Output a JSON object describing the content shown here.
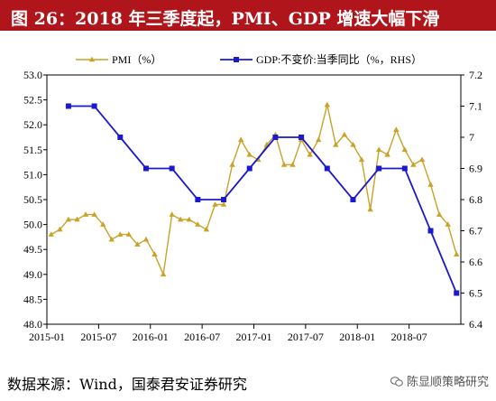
{
  "title": "图 26：2018 年三季度起，PMI、GDP 增速大幅下滑",
  "source": "数据来源：Wind，国泰君安证券研究",
  "watermark": "陈显顺策略研究",
  "colors": {
    "pmi": "#c9a227",
    "gdp": "#1a1acc",
    "title_bg": "#b0151b"
  },
  "chart_data": {
    "type": "line",
    "x_ticks": [
      "2015-01",
      "2015-07",
      "2016-01",
      "2016-07",
      "2017-01",
      "2017-07",
      "2018-01",
      "2018-07"
    ],
    "y_left": {
      "min": 48.0,
      "max": 53.0,
      "step": 0.5,
      "ticks": [
        "48.0",
        "48.5",
        "49.0",
        "49.5",
        "50.0",
        "50.5",
        "51.0",
        "51.5",
        "52.0",
        "52.5",
        "53.0"
      ]
    },
    "y_right": {
      "min": 6.4,
      "max": 7.2,
      "step": 0.1,
      "ticks": [
        "6.4",
        "6.5",
        "6.6",
        "6.7",
        "6.8",
        "6.9",
        "7",
        "7.1",
        "7.2"
      ]
    },
    "legend": {
      "placement": "top"
    },
    "series": [
      {
        "name": "PMI（%）",
        "axis": "left",
        "marker": "triangle",
        "x": [
          "2015-01",
          "2015-02",
          "2015-03",
          "2015-04",
          "2015-05",
          "2015-06",
          "2015-07",
          "2015-08",
          "2015-09",
          "2015-10",
          "2015-11",
          "2015-12",
          "2016-01",
          "2016-02",
          "2016-03",
          "2016-04",
          "2016-05",
          "2016-06",
          "2016-07",
          "2016-08",
          "2016-09",
          "2016-10",
          "2016-11",
          "2016-12",
          "2017-01",
          "2017-02",
          "2017-03",
          "2017-04",
          "2017-05",
          "2017-06",
          "2017-07",
          "2017-08",
          "2017-09",
          "2017-10",
          "2017-11",
          "2017-12",
          "2018-01",
          "2018-02",
          "2018-03",
          "2018-04",
          "2018-05",
          "2018-06",
          "2018-07",
          "2018-08",
          "2018-09",
          "2018-10",
          "2018-11",
          "2018-12"
        ],
        "values": [
          49.8,
          49.9,
          50.1,
          50.1,
          50.2,
          50.2,
          50.0,
          49.7,
          49.8,
          49.8,
          49.6,
          49.7,
          49.4,
          49.0,
          50.2,
          50.1,
          50.1,
          50.0,
          49.9,
          50.4,
          50.4,
          51.2,
          51.7,
          51.4,
          51.3,
          51.6,
          51.8,
          51.2,
          51.2,
          51.7,
          51.4,
          51.7,
          52.4,
          51.6,
          51.8,
          51.6,
          51.3,
          50.3,
          51.5,
          51.4,
          51.9,
          51.5,
          51.2,
          51.3,
          50.8,
          50.2,
          50.0,
          49.4
        ]
      },
      {
        "name": "GDP:不变价:当季同比（%，RHS）",
        "axis": "right",
        "marker": "square",
        "x": [
          "2015-03",
          "2015-06",
          "2015-09",
          "2015-12",
          "2016-03",
          "2016-06",
          "2016-09",
          "2016-12",
          "2017-03",
          "2017-06",
          "2017-09",
          "2017-12",
          "2018-03",
          "2018-06",
          "2018-09",
          "2018-12"
        ],
        "values": [
          7.1,
          7.1,
          7.0,
          6.9,
          6.9,
          6.8,
          6.8,
          6.9,
          7.0,
          7.0,
          6.9,
          6.8,
          6.9,
          6.9,
          6.7,
          6.5
        ]
      }
    ]
  }
}
